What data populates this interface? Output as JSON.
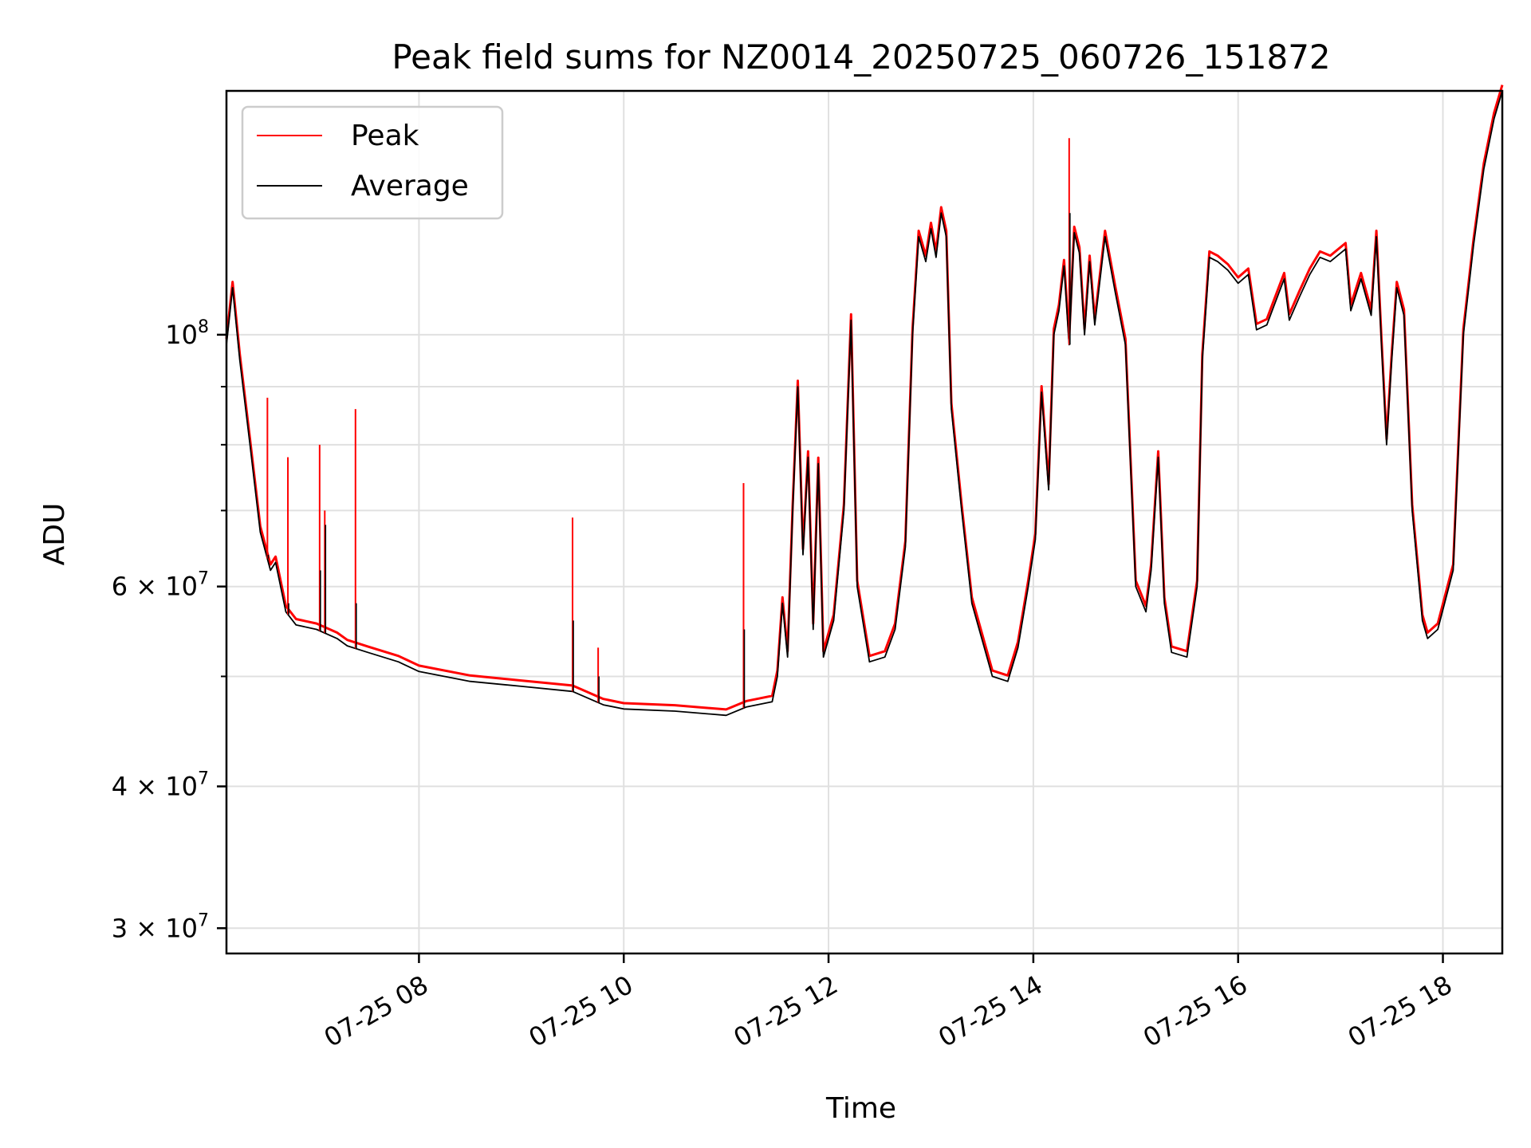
{
  "chart_data": {
    "type": "line",
    "title": "Peak field sums for NZ0014_20250725_060726_151872",
    "xlabel": "Time",
    "ylabel": "ADU",
    "yscale": "log",
    "ylim": [
      28500000,
      164000000
    ],
    "xlim_hours": [
      6.12,
      18.58
    ],
    "x_ticks": [
      {
        "label": "07-25 08",
        "hour": 8
      },
      {
        "label": "07-25 10",
        "hour": 10
      },
      {
        "label": "07-25 12",
        "hour": 12
      },
      {
        "label": "07-25 14",
        "hour": 14
      },
      {
        "label": "07-25 16",
        "hour": 16
      },
      {
        "label": "07-25 18",
        "hour": 18
      }
    ],
    "y_major_ticks": [
      {
        "value": 30000000,
        "mantissa": "3",
        "base": "10",
        "exp": "7"
      },
      {
        "value": 40000000,
        "mantissa": "4",
        "base": "10",
        "exp": "7"
      },
      {
        "value": 60000000,
        "mantissa": "6",
        "base": "10",
        "exp": "7"
      },
      {
        "value": 100000000,
        "mantissa": "",
        "base": "10",
        "exp": "8"
      }
    ],
    "y_minor_gridlines": [
      50000000,
      70000000,
      80000000,
      90000000
    ],
    "grid": true,
    "legend_position": "top-left",
    "series": [
      {
        "name": "Peak",
        "color": "#ff0000"
      },
      {
        "name": "Average",
        "color": "#000000"
      }
    ],
    "average_points": [
      [
        6.12,
        98000000
      ],
      [
        6.18,
        110000000
      ],
      [
        6.25,
        95000000
      ],
      [
        6.35,
        80000000
      ],
      [
        6.45,
        67000000
      ],
      [
        6.55,
        62000000
      ],
      [
        6.6,
        63000000
      ],
      [
        6.7,
        57000000
      ],
      [
        6.8,
        55500000
      ],
      [
        7.0,
        55000000
      ],
      [
        7.2,
        54000000
      ],
      [
        7.3,
        53200000
      ],
      [
        7.5,
        52500000
      ],
      [
        7.8,
        51500000
      ],
      [
        8.0,
        50500000
      ],
      [
        8.5,
        49500000
      ],
      [
        9.0,
        49000000
      ],
      [
        9.5,
        48500000
      ],
      [
        9.8,
        47200000
      ],
      [
        10.0,
        46800000
      ],
      [
        10.5,
        46600000
      ],
      [
        11.0,
        46200000
      ],
      [
        11.2,
        47000000
      ],
      [
        11.45,
        47500000
      ],
      [
        11.5,
        50000000
      ],
      [
        11.55,
        58000000
      ],
      [
        11.6,
        52000000
      ],
      [
        11.65,
        70000000
      ],
      [
        11.7,
        90000000
      ],
      [
        11.75,
        64000000
      ],
      [
        11.8,
        78000000
      ],
      [
        11.85,
        55000000
      ],
      [
        11.9,
        77000000
      ],
      [
        11.95,
        52000000
      ],
      [
        12.05,
        56000000
      ],
      [
        12.15,
        70000000
      ],
      [
        12.22,
        103000000
      ],
      [
        12.28,
        60000000
      ],
      [
        12.4,
        51500000
      ],
      [
        12.55,
        52000000
      ],
      [
        12.65,
        55000000
      ],
      [
        12.75,
        65000000
      ],
      [
        12.82,
        100000000
      ],
      [
        12.88,
        122000000
      ],
      [
        12.95,
        116000000
      ],
      [
        13.0,
        124000000
      ],
      [
        13.05,
        117000000
      ],
      [
        13.1,
        128000000
      ],
      [
        13.15,
        122000000
      ],
      [
        13.2,
        86000000
      ],
      [
        13.3,
        70000000
      ],
      [
        13.4,
        58000000
      ],
      [
        13.6,
        50000000
      ],
      [
        13.75,
        49500000
      ],
      [
        13.85,
        53000000
      ],
      [
        13.95,
        60000000
      ],
      [
        14.02,
        66000000
      ],
      [
        14.08,
        89000000
      ],
      [
        14.15,
        73000000
      ],
      [
        14.2,
        100000000
      ],
      [
        14.25,
        105000000
      ],
      [
        14.3,
        115000000
      ],
      [
        14.35,
        98000000
      ],
      [
        14.4,
        123000000
      ],
      [
        14.45,
        118000000
      ],
      [
        14.5,
        100000000
      ],
      [
        14.55,
        116000000
      ],
      [
        14.6,
        102000000
      ],
      [
        14.7,
        122000000
      ],
      [
        14.8,
        109000000
      ],
      [
        14.9,
        98000000
      ],
      [
        15.0,
        60000000
      ],
      [
        15.1,
        57000000
      ],
      [
        15.15,
        62000000
      ],
      [
        15.22,
        78000000
      ],
      [
        15.28,
        58000000
      ],
      [
        15.35,
        52500000
      ],
      [
        15.5,
        52000000
      ],
      [
        15.6,
        60000000
      ],
      [
        15.65,
        95000000
      ],
      [
        15.72,
        117000000
      ],
      [
        15.8,
        116000000
      ],
      [
        15.9,
        114000000
      ],
      [
        16.0,
        111000000
      ],
      [
        16.1,
        113000000
      ],
      [
        16.18,
        101000000
      ],
      [
        16.28,
        102000000
      ],
      [
        16.35,
        106000000
      ],
      [
        16.45,
        112000000
      ],
      [
        16.5,
        103000000
      ],
      [
        16.6,
        108000000
      ],
      [
        16.7,
        113000000
      ],
      [
        16.8,
        117000000
      ],
      [
        16.9,
        116000000
      ],
      [
        17.05,
        119000000
      ],
      [
        17.1,
        105000000
      ],
      [
        17.2,
        112000000
      ],
      [
        17.3,
        104000000
      ],
      [
        17.35,
        122000000
      ],
      [
        17.4,
        98000000
      ],
      [
        17.45,
        80000000
      ],
      [
        17.5,
        95000000
      ],
      [
        17.55,
        110000000
      ],
      [
        17.62,
        104000000
      ],
      [
        17.7,
        70000000
      ],
      [
        17.8,
        56000000
      ],
      [
        17.85,
        54000000
      ],
      [
        17.95,
        55000000
      ],
      [
        18.1,
        62000000
      ],
      [
        18.2,
        100000000
      ],
      [
        18.3,
        120000000
      ],
      [
        18.4,
        140000000
      ],
      [
        18.5,
        155000000
      ],
      [
        18.58,
        164000000
      ]
    ],
    "spikes": [
      {
        "hour": 6.52,
        "peak": 88000000,
        "average": 64000000
      },
      {
        "hour": 6.72,
        "peak": 78000000,
        "average": 58000000
      },
      {
        "hour": 7.03,
        "peak": 80000000,
        "average": 62000000
      },
      {
        "hour": 7.08,
        "peak": 70000000,
        "average": 68000000
      },
      {
        "hour": 7.38,
        "peak": 86000000,
        "average": 58000000
      },
      {
        "hour": 9.5,
        "peak": 69000000,
        "average": 56000000
      },
      {
        "hour": 9.75,
        "peak": 53000000,
        "average": 50000000
      },
      {
        "hour": 11.17,
        "peak": 74000000,
        "average": 55000000
      },
      {
        "hour": 14.35,
        "peak": 149000000,
        "average": 128000000
      }
    ]
  }
}
